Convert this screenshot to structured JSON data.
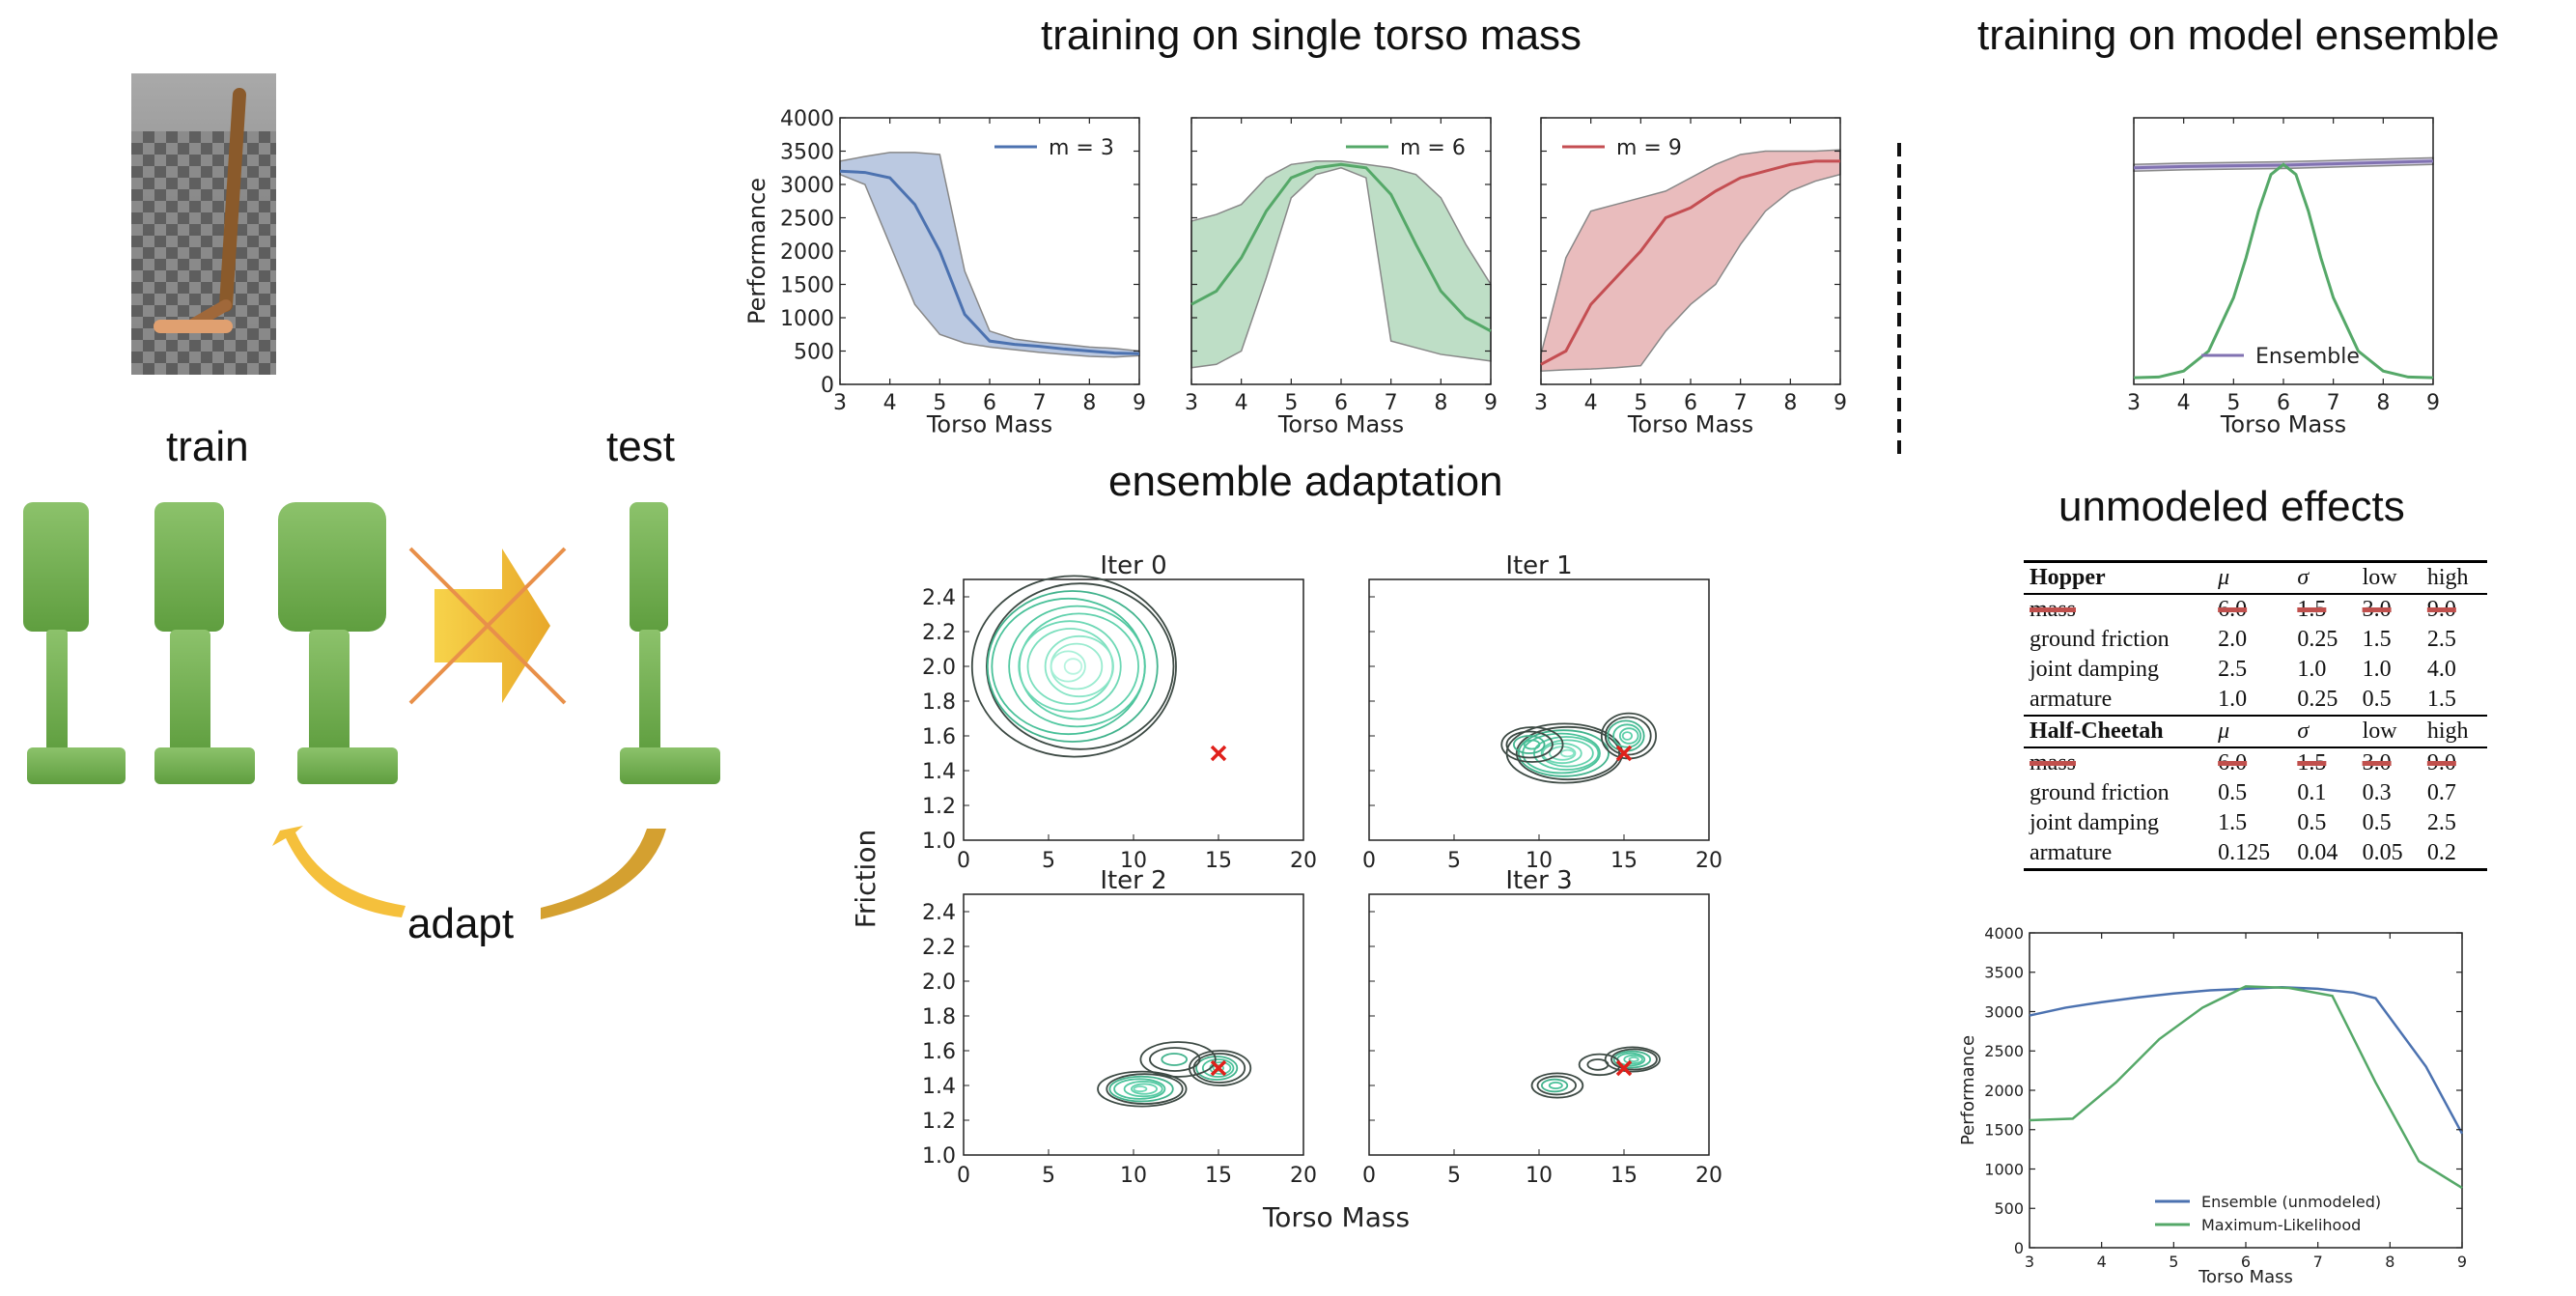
{
  "headings": {
    "single_mass": "training on single torso mass",
    "ensemble_training": "training on model ensemble",
    "ensemble_adaptation": "ensemble adaptation",
    "unmodeled": "unmodeled effects"
  },
  "illustration": {
    "train_label": "train",
    "test_label": "test",
    "adapt_label": "adapt"
  },
  "params_table": {
    "groups": [
      {
        "name": "Hopper",
        "columns": [
          "μ",
          "σ",
          "low",
          "high"
        ],
        "rows": [
          {
            "param": "mass",
            "values": [
              "6.0",
              "1.5",
              "3.0",
              "9.0"
            ],
            "struck": true
          },
          {
            "param": "ground friction",
            "values": [
              "2.0",
              "0.25",
              "1.5",
              "2.5"
            ],
            "struck": false
          },
          {
            "param": "joint damping",
            "values": [
              "2.5",
              "1.0",
              "1.0",
              "4.0"
            ],
            "struck": false
          },
          {
            "param": "armature",
            "values": [
              "1.0",
              "0.25",
              "0.5",
              "1.5"
            ],
            "struck": false
          }
        ]
      },
      {
        "name": "Half-Cheetah",
        "columns": [
          "μ",
          "σ",
          "low",
          "high"
        ],
        "rows": [
          {
            "param": "mass",
            "values": [
              "6.0",
              "1.5",
              "3.0",
              "9.0"
            ],
            "struck": true
          },
          {
            "param": "ground friction",
            "values": [
              "0.5",
              "0.1",
              "0.3",
              "0.7"
            ],
            "struck": false
          },
          {
            "param": "joint damping",
            "values": [
              "1.5",
              "0.5",
              "0.5",
              "2.5"
            ],
            "struck": false
          },
          {
            "param": "armature",
            "values": [
              "0.125",
              "0.04",
              "0.05",
              "0.2"
            ],
            "struck": false
          }
        ]
      }
    ]
  },
  "colors": {
    "blue": "#4c72b0",
    "green": "#55a868",
    "red": "#c44e52",
    "purple": "#8172b2",
    "cross": "#e0201b",
    "block_green": "#6aaa4e",
    "arrow_orange": "#f0b83a"
  },
  "chart_data": [
    {
      "type": "line",
      "id": "m3",
      "xlabel": "Torso Mass",
      "ylabel": "Performance",
      "xlim": [
        3,
        9
      ],
      "ylim": [
        0,
        4000
      ],
      "xticks": [
        3,
        4,
        5,
        6,
        7,
        8,
        9
      ],
      "yticks": [
        0,
        500,
        1000,
        1500,
        2000,
        2500,
        3000,
        3500,
        4000
      ],
      "series": [
        {
          "name": "m = 3",
          "color": "blue",
          "x": [
            3,
            3.5,
            4,
            4.5,
            5,
            5.5,
            6,
            6.5,
            7,
            7.5,
            8,
            8.5,
            9
          ],
          "y": [
            3200,
            3180,
            3100,
            2700,
            2000,
            1050,
            650,
            600,
            570,
            530,
            500,
            470,
            460
          ],
          "lower": [
            3150,
            3000,
            2100,
            1200,
            750,
            620,
            560,
            520,
            480,
            450,
            420,
            410,
            430
          ],
          "upper": [
            3350,
            3420,
            3480,
            3480,
            3450,
            1700,
            800,
            680,
            630,
            600,
            560,
            540,
            500
          ]
        }
      ],
      "legend": "top-right"
    },
    {
      "type": "line",
      "id": "m6",
      "xlabel": "Torso Mass",
      "ylabel": "",
      "xlim": [
        3,
        9
      ],
      "ylim": [
        0,
        4000
      ],
      "xticks": [
        3,
        4,
        5,
        6,
        7,
        8,
        9
      ],
      "yticks": [
        0,
        500,
        1000,
        1500,
        2000,
        2500,
        3000,
        3500,
        4000
      ],
      "series": [
        {
          "name": "m = 6",
          "color": "green",
          "x": [
            3,
            3.5,
            4,
            4.5,
            5,
            5.5,
            6,
            6.5,
            7,
            7.5,
            8,
            8.5,
            9
          ],
          "y": [
            1200,
            1400,
            1900,
            2600,
            3100,
            3250,
            3300,
            3250,
            2850,
            2100,
            1400,
            1000,
            800
          ],
          "lower": [
            250,
            300,
            500,
            1600,
            2800,
            3150,
            3250,
            3100,
            650,
            550,
            450,
            400,
            350
          ],
          "upper": [
            2450,
            2550,
            2700,
            3100,
            3300,
            3350,
            3350,
            3300,
            3250,
            3150,
            2800,
            2100,
            1500
          ]
        }
      ],
      "legend": "top-right"
    },
    {
      "type": "line",
      "id": "m9",
      "xlabel": "Torso Mass",
      "ylabel": "",
      "xlim": [
        3,
        9
      ],
      "ylim": [
        0,
        4000
      ],
      "xticks": [
        3,
        4,
        5,
        6,
        7,
        8,
        9
      ],
      "yticks": [
        0,
        500,
        1000,
        1500,
        2000,
        2500,
        3000,
        3500,
        4000
      ],
      "series": [
        {
          "name": "m = 9",
          "color": "red",
          "x": [
            3,
            3.5,
            4,
            4.5,
            5,
            5.5,
            6,
            6.5,
            7,
            7.5,
            8,
            8.5,
            9
          ],
          "y": [
            300,
            500,
            1200,
            1600,
            2000,
            2500,
            2650,
            2900,
            3100,
            3200,
            3300,
            3350,
            3350
          ],
          "lower": [
            200,
            220,
            230,
            250,
            280,
            800,
            1200,
            1500,
            2100,
            2600,
            2900,
            3050,
            3150
          ],
          "upper": [
            450,
            1900,
            2600,
            2700,
            2800,
            2900,
            3100,
            3300,
            3450,
            3500,
            3500,
            3500,
            3520
          ]
        }
      ],
      "legend": "top-left"
    },
    {
      "type": "line",
      "id": "ensemble",
      "xlabel": "Torso Mass",
      "ylabel": "",
      "xlim": [
        3,
        9
      ],
      "ylim": [
        0,
        4000
      ],
      "xticks": [
        3,
        4,
        5,
        6,
        7,
        8,
        9
      ],
      "yticks": [],
      "series": [
        {
          "name": "Ensemble",
          "color": "purple",
          "x": [
            3,
            4,
            5,
            6,
            7,
            8,
            9
          ],
          "y": [
            3250,
            3270,
            3280,
            3290,
            3310,
            3330,
            3350
          ],
          "lower": [
            3200,
            3220,
            3230,
            3240,
            3260,
            3280,
            3300
          ],
          "upper": [
            3300,
            3320,
            3330,
            3340,
            3360,
            3380,
            3400
          ]
        },
        {
          "name": "",
          "color": "green",
          "x": [
            3,
            3.5,
            4,
            4.5,
            5,
            5.25,
            5.5,
            5.75,
            6,
            6.25,
            6.5,
            6.75,
            7,
            7.5,
            8,
            8.5,
            9
          ],
          "y": [
            100,
            110,
            200,
            500,
            1300,
            1900,
            2600,
            3150,
            3300,
            3150,
            2600,
            1900,
            1300,
            500,
            200,
            110,
            100
          ]
        }
      ],
      "legend": "lower-center"
    },
    {
      "type": "line",
      "id": "unmodeled",
      "xlabel": "Torso Mass",
      "ylabel": "Performance",
      "xlim": [
        3,
        9
      ],
      "ylim": [
        0,
        4000
      ],
      "xticks": [
        3,
        4,
        5,
        6,
        7,
        8,
        9
      ],
      "yticks": [
        0,
        500,
        1000,
        1500,
        2000,
        2500,
        3000,
        3500,
        4000
      ],
      "series": [
        {
          "name": "Ensemble (unmodeled)",
          "color": "blue",
          "x": [
            3,
            3.5,
            4,
            4.5,
            5,
            5.5,
            6,
            6.5,
            7,
            7.5,
            7.8,
            8.5,
            9
          ],
          "y": [
            2950,
            3050,
            3120,
            3180,
            3230,
            3270,
            3290,
            3310,
            3290,
            3240,
            3170,
            2300,
            1450
          ]
        },
        {
          "name": "Maximum-Likelihood",
          "color": "green",
          "x": [
            3,
            3.6,
            4.2,
            4.8,
            5.4,
            6,
            6.6,
            7.2,
            7.8,
            8.4,
            9
          ],
          "y": [
            1620,
            1640,
            2100,
            2650,
            3050,
            3320,
            3300,
            3200,
            2100,
            1100,
            760
          ]
        }
      ],
      "legend": "lower-center"
    },
    {
      "type": "contour",
      "id": "iter0",
      "title": "Iter 0",
      "xlabel": "Torso Mass",
      "ylabel": "Friction",
      "xlim": [
        0,
        20
      ],
      "ylim": [
        1.0,
        2.5
      ],
      "xticks": [
        0,
        5,
        10,
        15,
        20
      ],
      "yticks": [
        1.0,
        1.2,
        1.4,
        1.6,
        1.8,
        2.0,
        2.2,
        2.4
      ],
      "true_point": [
        15,
        1.5
      ],
      "blobs": [
        {
          "cx": 6.5,
          "cy": 2.0,
          "rx": 6.0,
          "ry": 0.52,
          "levels": 12
        }
      ]
    },
    {
      "type": "contour",
      "id": "iter1",
      "title": "Iter 1",
      "xlabel": "",
      "ylabel": "",
      "xlim": [
        0,
        20
      ],
      "ylim": [
        1.0,
        2.5
      ],
      "xticks": [
        0,
        5,
        10,
        15,
        20
      ],
      "yticks": [],
      "true_point": [
        15,
        1.5
      ],
      "blobs": [
        {
          "cx": 11.5,
          "cy": 1.5,
          "rx": 3.4,
          "ry": 0.17,
          "levels": 9
        },
        {
          "cx": 15.2,
          "cy": 1.6,
          "rx": 1.6,
          "ry": 0.13,
          "levels": 6
        },
        {
          "cx": 9.5,
          "cy": 1.55,
          "rx": 1.8,
          "ry": 0.1,
          "levels": 4
        }
      ]
    },
    {
      "type": "contour",
      "id": "iter2",
      "title": "Iter 2",
      "xlabel": "",
      "ylabel": "",
      "xlim": [
        0,
        20
      ],
      "ylim": [
        1.0,
        2.5
      ],
      "xticks": [
        0,
        5,
        10,
        15,
        20
      ],
      "yticks": [
        1.0,
        1.2,
        1.4,
        1.6,
        1.8,
        2.0,
        2.2,
        2.4
      ],
      "true_point": [
        15,
        1.5
      ],
      "blobs": [
        {
          "cx": 10.5,
          "cy": 1.38,
          "rx": 2.6,
          "ry": 0.1,
          "levels": 7
        },
        {
          "cx": 15.0,
          "cy": 1.5,
          "rx": 1.8,
          "ry": 0.1,
          "levels": 6
        },
        {
          "cx": 12.5,
          "cy": 1.55,
          "rx": 2.2,
          "ry": 0.1,
          "levels": 3
        }
      ]
    },
    {
      "type": "contour",
      "id": "iter3",
      "title": "Iter 3",
      "xlabel": "",
      "ylabel": "",
      "xlim": [
        0,
        20
      ],
      "ylim": [
        1.0,
        2.5
      ],
      "xticks": [
        0,
        5,
        10,
        15,
        20
      ],
      "yticks": [],
      "true_point": [
        15,
        1.5
      ],
      "blobs": [
        {
          "cx": 15.5,
          "cy": 1.55,
          "rx": 1.6,
          "ry": 0.07,
          "levels": 6
        },
        {
          "cx": 11.0,
          "cy": 1.4,
          "rx": 1.5,
          "ry": 0.07,
          "levels": 4
        },
        {
          "cx": 13.5,
          "cy": 1.52,
          "rx": 1.2,
          "ry": 0.06,
          "levels": 2
        }
      ]
    }
  ]
}
